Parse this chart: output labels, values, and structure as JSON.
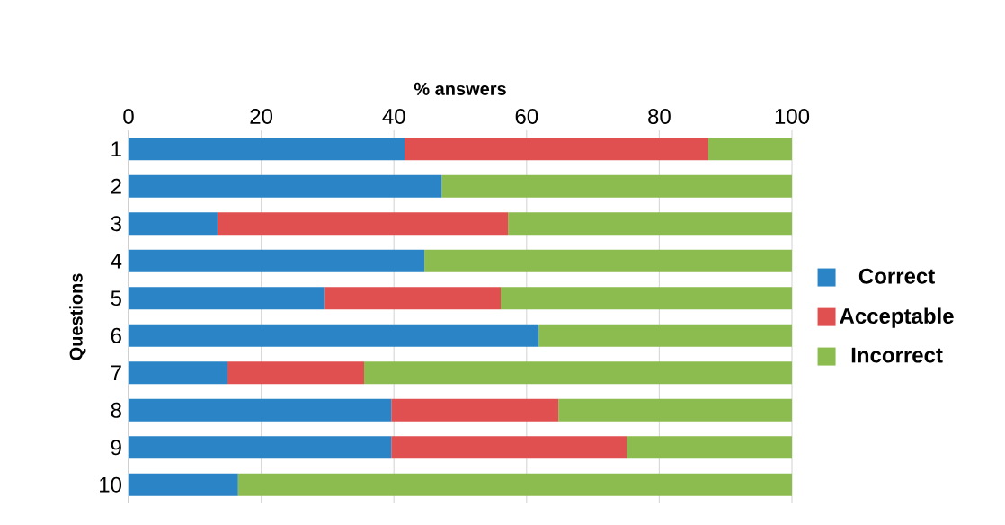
{
  "chart_data": {
    "type": "bar",
    "orientation": "horizontal",
    "stacked": true,
    "xlabel": "% answers",
    "ylabel": "Questions",
    "categories": [
      "1",
      "2",
      "3",
      "4",
      "5",
      "6",
      "7",
      "8",
      "9",
      "10"
    ],
    "series": [
      {
        "name": "Correct",
        "color": "#2a84c6",
        "values": [
          41.6,
          47.2,
          13.4,
          44.6,
          29.5,
          61.8,
          14.9,
          39.6,
          39.6,
          16.5
        ]
      },
      {
        "name": "Acceptable",
        "color": "#e05050",
        "values": [
          45.8,
          0,
          43.8,
          0,
          26.6,
          0,
          20.6,
          25.2,
          35.5,
          0
        ]
      },
      {
        "name": "Incorrect",
        "color": "#8cbb4f",
        "values": [
          12.6,
          52.8,
          42.8,
          55.4,
          43.9,
          38.2,
          64.5,
          35.2,
          24.9,
          83.5
        ]
      }
    ],
    "xlim": [
      0,
      100
    ],
    "xticks": [
      0,
      20,
      40,
      60,
      80,
      100
    ],
    "grid": "x",
    "legend": "right"
  }
}
